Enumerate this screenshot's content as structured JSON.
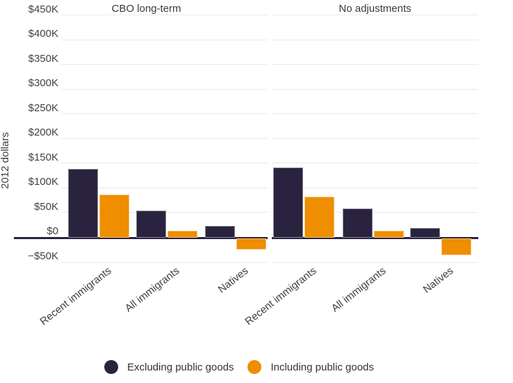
{
  "chart_data": {
    "type": "bar",
    "title": "",
    "ylabel": "2012 dollars",
    "ylim": [
      -50000,
      450000
    ],
    "ytick_step": 50000,
    "ytick_labels": [
      "$450K",
      "$400K",
      "$350K",
      "$300K",
      "$250K",
      "$200K",
      "$150K",
      "$100K",
      "$50K",
      "$0",
      "−$50K"
    ],
    "grid": true,
    "legend_position": "bottom",
    "categories": [
      "Recent immigrants",
      "All immigrants",
      "Natives"
    ],
    "series_names": [
      "Excluding public goods",
      "Including public goods"
    ],
    "facets": [
      {
        "title": "CBO long-term",
        "series": [
          {
            "name": "Excluding public goods",
            "color": "#2a2340",
            "values": [
              138000,
              53000,
              23000
            ]
          },
          {
            "name": "Including public goods",
            "color": "#ee8e00",
            "values": [
              86000,
              13000,
              -24000
            ]
          }
        ]
      },
      {
        "title": "No adjustments",
        "series": [
          {
            "name": "Excluding public goods",
            "color": "#2a2340",
            "values": [
              140000,
              58000,
              18000
            ]
          },
          {
            "name": "Including public goods",
            "color": "#ee8e00",
            "values": [
              81000,
              12000,
              -35000
            ]
          }
        ]
      }
    ],
    "colors": {
      "excluding_public_goods": "#2a2340",
      "including_public_goods": "#ee8e00",
      "gridline": "#e9e9e9",
      "zero_line": "#2a2340",
      "text": "#3f3f3f",
      "background": "#ffffff"
    }
  },
  "legend": {
    "items": [
      {
        "label": "Excluding public goods",
        "color": "#2a2340"
      },
      {
        "label": "Including public goods",
        "color": "#ee8e00"
      }
    ]
  }
}
